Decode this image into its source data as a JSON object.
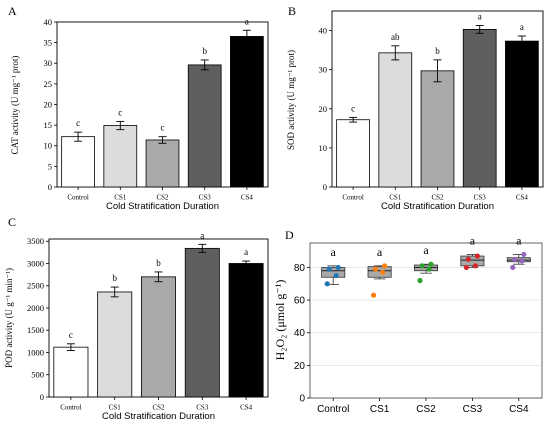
{
  "chart_data": [
    {
      "type": "bar",
      "panel": "A",
      "title": "",
      "xlabel": "Cold Stratification Duration",
      "ylabel": "CAT activity (U mg⁻¹ prot)",
      "categories": [
        "Control",
        "CS1",
        "CS2",
        "CS3",
        "CS4"
      ],
      "values": [
        12.2,
        14.9,
        11.4,
        29.6,
        36.5
      ],
      "errors": [
        1.1,
        1.0,
        0.8,
        1.2,
        1.5
      ],
      "letters": [
        "c",
        "c",
        "c",
        "b",
        "a"
      ],
      "colors": [
        "#ffffff",
        "#dcdcdc",
        "#a9a9a9",
        "#5f5f5f",
        "#000000"
      ],
      "ylim": [
        0,
        40
      ],
      "yticks": [
        0,
        5,
        10,
        15,
        20,
        25,
        30,
        35,
        40
      ],
      "grid": false
    },
    {
      "type": "bar",
      "panel": "B",
      "title": "",
      "xlabel": "Cold Stratification Duration",
      "ylabel": "SOD activity (U mg⁻¹ prot)",
      "categories": [
        "Control",
        "CS1",
        "CS2",
        "CS3",
        "CS4"
      ],
      "values": [
        17.2,
        34.3,
        29.7,
        40.3,
        37.3
      ],
      "errors": [
        0.6,
        1.8,
        2.8,
        1.0,
        1.3
      ],
      "letters": [
        "c",
        "ab",
        "b",
        "a",
        "a"
      ],
      "colors": [
        "#ffffff",
        "#dcdcdc",
        "#a9a9a9",
        "#5f5f5f",
        "#000000"
      ],
      "ylim": [
        0,
        45
      ],
      "yticks": [
        0,
        10,
        20,
        30,
        40
      ],
      "grid": false
    },
    {
      "type": "bar",
      "panel": "C",
      "title": "",
      "xlabel": "Cold Stratification Duration",
      "ylabel": "POD activity (U g⁻¹ min⁻¹)",
      "categories": [
        "Control",
        "CS1",
        "CS2",
        "CS3",
        "CS4"
      ],
      "values": [
        1120,
        2360,
        2700,
        3340,
        3000
      ],
      "errors": [
        75,
        110,
        110,
        90,
        55
      ],
      "letters": [
        "c",
        "b",
        "b",
        "a",
        "a"
      ],
      "colors": [
        "#ffffff",
        "#dcdcdc",
        "#a9a9a9",
        "#5f5f5f",
        "#000000"
      ],
      "ylim": [
        0,
        3550
      ],
      "yticks": [
        0,
        500,
        1000,
        1500,
        2000,
        2500,
        3000,
        3500
      ],
      "grid": false
    },
    {
      "type": "box",
      "panel": "D",
      "title": "",
      "xlabel": "",
      "ylabel": "H₂O₂ (μmol g⁻¹)",
      "categories": [
        "Control",
        "CS1",
        "CS2",
        "CS3",
        "CS4"
      ],
      "boxes": [
        {
          "whisker_low": 69.5,
          "q1": 74,
          "median": 78,
          "q3": 80,
          "whisker_high": 81
        },
        {
          "whisker_low": 73,
          "q1": 74,
          "median": 78,
          "q3": 80.5,
          "whisker_high": 81
        },
        {
          "whisker_low": 76.5,
          "q1": 78,
          "median": 80,
          "q3": 81.5,
          "whisker_high": 82
        },
        {
          "whisker_low": 80,
          "q1": 81,
          "median": 84.5,
          "q3": 87,
          "whisker_high": 88
        },
        {
          "whisker_low": 82,
          "q1": 83.5,
          "median": 84.5,
          "q3": 86,
          "whisker_high": 88
        }
      ],
      "points": [
        [
          80,
          79,
          75,
          70
        ],
        [
          81,
          79,
          77,
          63
        ],
        [
          82,
          81,
          79,
          72
        ],
        [
          87,
          85,
          81,
          80
        ],
        [
          88,
          85,
          84,
          80
        ]
      ],
      "point_colors": [
        "#1f77b4",
        "#ff7f0e",
        "#2ca02c",
        "#d62728",
        "#9467bd"
      ],
      "letters": [
        "a",
        "a",
        "a",
        "a",
        "a"
      ],
      "ylim": [
        0,
        95
      ],
      "yticks": [
        0,
        20,
        40,
        60,
        80
      ],
      "grid": true
    }
  ]
}
